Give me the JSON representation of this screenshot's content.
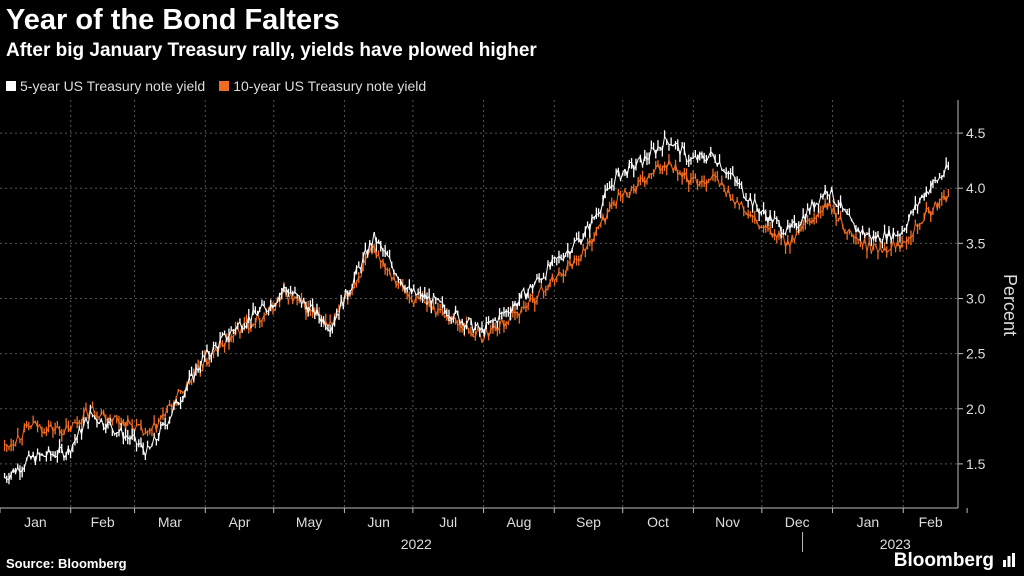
{
  "header": {
    "title": "Year of the Bond Falters",
    "subtitle": "After big January Treasury rally, yields have plowed higher"
  },
  "footer": {
    "source": "Source: Bloomberg",
    "brand": "Bloomberg"
  },
  "colors": {
    "background": "#000000",
    "series_5y": "#ffffff",
    "series_10y": "#f26c23",
    "grid": "#555555"
  },
  "chart_data": {
    "type": "line",
    "style": "OHLC-style daily bars",
    "title": "",
    "xlabel": "",
    "ylabel": "Percent",
    "ylim": [
      1.1,
      4.8
    ],
    "yticks": [
      "1.5",
      "2.0",
      "2.5",
      "3.0",
      "3.5",
      "4.0",
      "4.5"
    ],
    "yaxis_side": "right",
    "grid": true,
    "legend_position": "top-left",
    "x_month_labels": [
      "Jan",
      "Feb",
      "Mar",
      "Apr",
      "May",
      "Jun",
      "Jul",
      "Aug",
      "Sep",
      "Oct",
      "Nov",
      "Dec",
      "Jan",
      "Feb"
    ],
    "year_labels": [
      "2022",
      "2023"
    ],
    "series": [
      {
        "name": "5-year US Treasury note yield",
        "color": "#ffffff",
        "x": [
          "2022-01-03",
          "2022-01-15",
          "2022-01-31",
          "2022-02-10",
          "2022-02-28",
          "2022-03-07",
          "2022-03-31",
          "2022-04-15",
          "2022-04-30",
          "2022-05-06",
          "2022-05-26",
          "2022-06-14",
          "2022-06-30",
          "2022-07-08",
          "2022-07-31",
          "2022-08-15",
          "2022-08-31",
          "2022-09-15",
          "2022-09-28",
          "2022-10-10",
          "2022-10-21",
          "2022-10-31",
          "2022-11-10",
          "2022-11-30",
          "2022-12-13",
          "2022-12-30",
          "2023-01-10",
          "2023-01-19",
          "2023-01-31",
          "2023-02-10",
          "2023-02-21"
        ],
        "values": [
          1.38,
          1.55,
          1.62,
          1.95,
          1.72,
          1.6,
          2.45,
          2.75,
          2.95,
          3.1,
          2.75,
          3.55,
          3.05,
          3.0,
          2.7,
          2.95,
          3.3,
          3.6,
          4.1,
          4.25,
          4.45,
          4.25,
          4.3,
          3.8,
          3.6,
          4.0,
          3.65,
          3.55,
          3.6,
          3.95,
          4.18
        ]
      },
      {
        "name": "10-year US Treasury  note yield",
        "color": "#f26c23",
        "x": [
          "2022-01-03",
          "2022-01-15",
          "2022-01-31",
          "2022-02-10",
          "2022-02-28",
          "2022-03-07",
          "2022-03-31",
          "2022-04-15",
          "2022-04-30",
          "2022-05-06",
          "2022-05-26",
          "2022-06-14",
          "2022-06-30",
          "2022-07-08",
          "2022-07-31",
          "2022-08-15",
          "2022-08-31",
          "2022-09-15",
          "2022-09-28",
          "2022-10-10",
          "2022-10-21",
          "2022-10-31",
          "2022-11-10",
          "2022-11-30",
          "2022-12-13",
          "2022-12-30",
          "2023-01-10",
          "2023-01-19",
          "2023-01-31",
          "2023-02-10",
          "2023-02-21"
        ],
        "values": [
          1.65,
          1.85,
          1.8,
          2.0,
          1.85,
          1.75,
          2.4,
          2.7,
          2.9,
          3.05,
          2.75,
          3.45,
          3.0,
          2.95,
          2.65,
          2.85,
          3.15,
          3.45,
          3.9,
          4.05,
          4.25,
          4.05,
          4.1,
          3.65,
          3.5,
          3.85,
          3.55,
          3.45,
          3.5,
          3.75,
          3.92
        ]
      }
    ]
  }
}
